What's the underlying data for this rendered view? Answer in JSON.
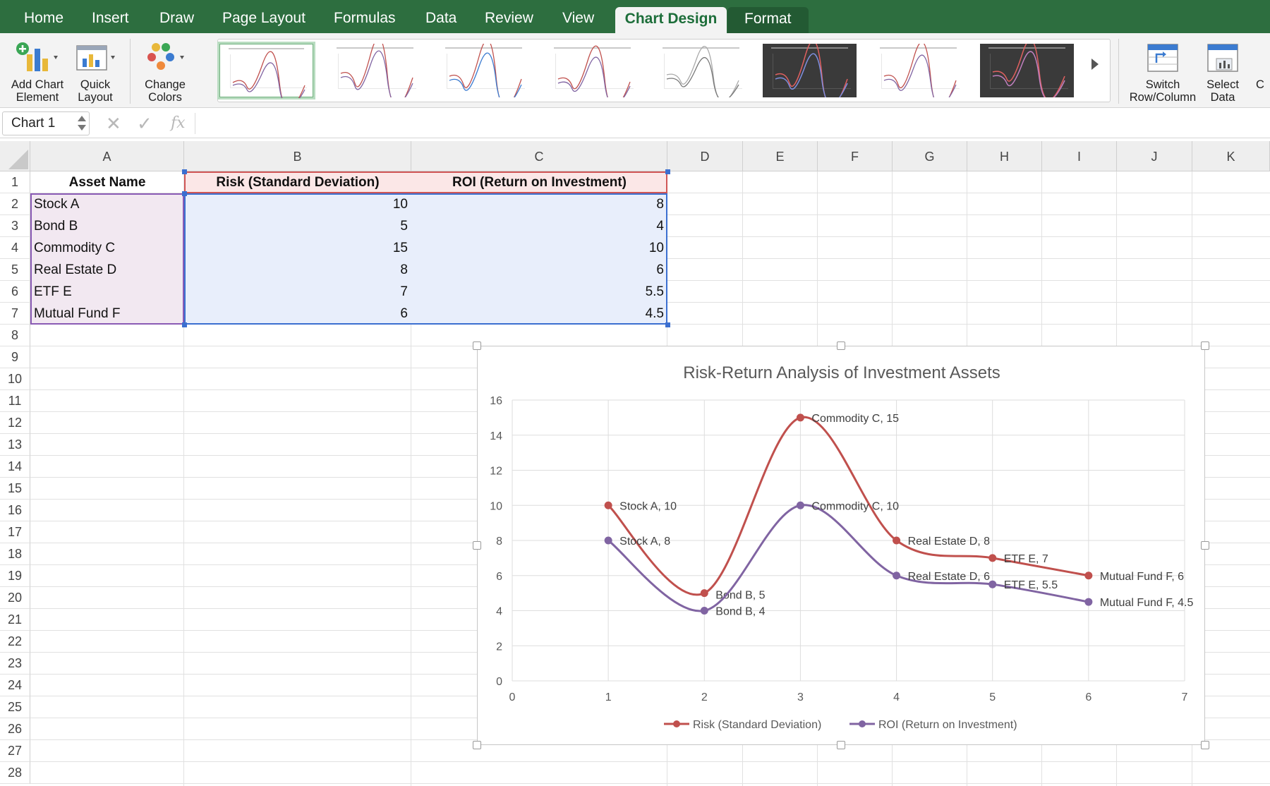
{
  "ribbon": {
    "tabs": [
      {
        "label": "Home",
        "active": false
      },
      {
        "label": "Insert",
        "active": false
      },
      {
        "label": "Draw",
        "active": false
      },
      {
        "label": "Page Layout",
        "active": false
      },
      {
        "label": "Formulas",
        "active": false
      },
      {
        "label": "Data",
        "active": false
      },
      {
        "label": "Review",
        "active": false
      },
      {
        "label": "View",
        "active": false
      },
      {
        "label": "Chart Design",
        "active": true
      },
      {
        "label": "Format",
        "active": false
      }
    ],
    "buttons": {
      "add_chart_element": "Add Chart\nElement",
      "quick_layout": "Quick\nLayout",
      "change_colors": "Change\nColors",
      "switch_row_column": "Switch\nRow/Column",
      "select_data": "Select\nData",
      "overflow": "C"
    },
    "chart_styles_count": 8,
    "selected_style": 1
  },
  "formula_bar": {
    "name_box": "Chart 1",
    "fx_label": "fx",
    "cancel_glyph": "✕",
    "enter_glyph": "✓",
    "formula": ""
  },
  "sheet": {
    "columns": [
      "A",
      "B",
      "C",
      "D",
      "E",
      "F",
      "G",
      "H",
      "I",
      "J",
      "K"
    ],
    "rows": [
      "1",
      "2",
      "3",
      "4",
      "5",
      "6",
      "7",
      "8",
      "9",
      "10",
      "11",
      "12",
      "13",
      "14",
      "15",
      "16",
      "17",
      "18",
      "19",
      "20",
      "21",
      "22",
      "23",
      "24",
      "25",
      "26",
      "27",
      "28"
    ],
    "header": [
      "Asset Name",
      "Risk (Standard Deviation)",
      "ROI (Return on Investment)"
    ],
    "data": [
      [
        "Stock A",
        "10",
        "8"
      ],
      [
        "Bond B",
        "5",
        "4"
      ],
      [
        "Commodity C",
        "15",
        "10"
      ],
      [
        "Real Estate D",
        "8",
        "6"
      ],
      [
        "ETF E",
        "7",
        "5.5"
      ],
      [
        "Mutual Fund F",
        "6",
        "4.5"
      ]
    ]
  },
  "colors": {
    "ribbon_green": "#2d6e3f",
    "risk_series": "#c0504d",
    "roi_series": "#8064a2"
  },
  "chart_data": {
    "type": "line",
    "title": "Risk-Return Analysis of Investment Assets",
    "xlim": [
      0,
      7
    ],
    "ylim": [
      0,
      16
    ],
    "xticks": [
      "0",
      "1",
      "2",
      "3",
      "4",
      "5",
      "6",
      "7"
    ],
    "yticks": [
      "0",
      "2",
      "4",
      "6",
      "8",
      "10",
      "12",
      "14",
      "16"
    ],
    "grid": true,
    "smooth": true,
    "legend_position": "bottom",
    "x": [
      1,
      2,
      3,
      4,
      5,
      6
    ],
    "series": [
      {
        "name": "Risk (Standard Deviation)",
        "color": "#c0504d",
        "values": [
          10,
          5,
          15,
          8,
          7,
          6
        ],
        "labels": [
          "Stock A, 10",
          "Bond B, 5",
          "Commodity C, 15",
          "Real Estate D, 8",
          "ETF E, 7",
          "Mutual Fund F, 6"
        ]
      },
      {
        "name": "ROI (Return on Investment)",
        "color": "#8064a2",
        "values": [
          8,
          4,
          10,
          6,
          5.5,
          4.5
        ],
        "labels": [
          "Stock A, 8",
          "Bond B, 4",
          "Commodity C, 10",
          "Real Estate D, 6",
          "ETF E, 5.5",
          "Mutual Fund F, 4.5"
        ]
      }
    ]
  }
}
